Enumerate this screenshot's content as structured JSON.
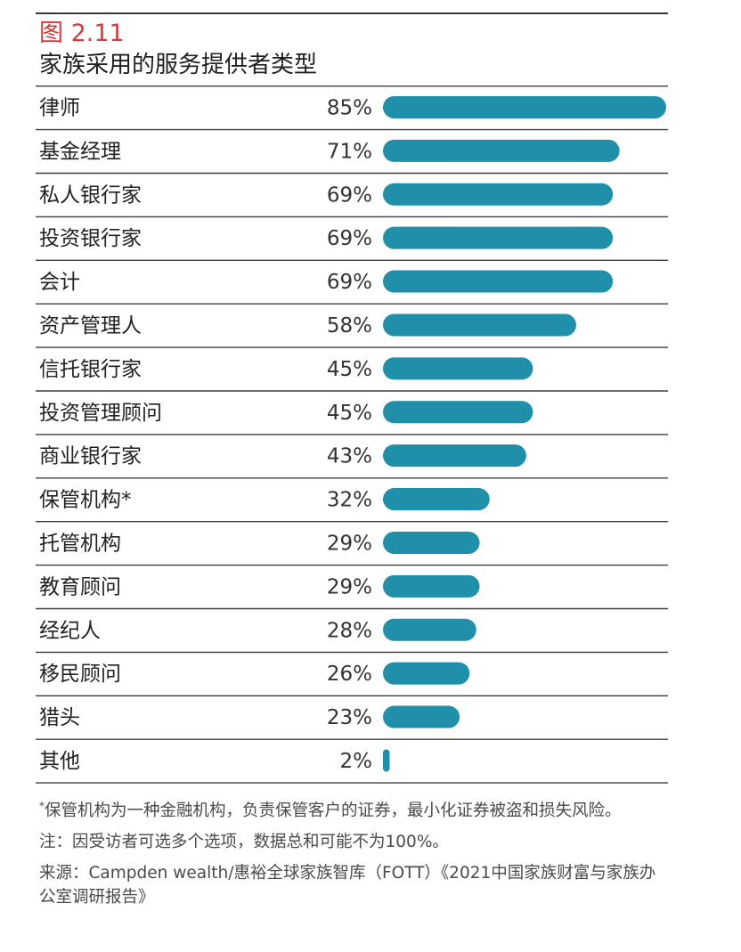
{
  "figure": {
    "number": "图 2.11",
    "title": "家族采用的服务提供者类型"
  },
  "chart_data": {
    "type": "bar",
    "orientation": "horizontal",
    "title": "家族采用的服务提供者类型",
    "xlim": [
      0,
      85
    ],
    "grid": false,
    "categories": [
      "律师",
      "基金经理",
      "私人银行家",
      "投资银行家",
      "会计",
      "资产管理人",
      "信托银行家",
      "投资管理顾问",
      "商业银行家",
      "保管机构*",
      "托管机构",
      "教育顾问",
      "经纪人",
      "移民顾问",
      "猎头",
      "其他"
    ],
    "values": [
      85,
      71,
      69,
      69,
      69,
      58,
      45,
      45,
      43,
      32,
      29,
      29,
      28,
      26,
      23,
      2
    ],
    "value_labels": [
      "85%",
      "71%",
      "69%",
      "69%",
      "69%",
      "58%",
      "45%",
      "45%",
      "43%",
      "32%",
      "29%",
      "29%",
      "28%",
      "26%",
      "23%",
      "2%"
    ],
    "bar_color": "#1f8faa"
  },
  "notes": {
    "asterisk_mark": "*",
    "asterisk_text": "保管机构为一种金融机构，负责保管客户的证券，最小化证券被盗和损失风险。",
    "note": "注：因受访者可选多个选项，数据总和可能不为100%。",
    "source": "来源：Campden wealth/惠裕全球家族智库（FOTT）《2021中国家族财富与家族办公室调研报告》"
  },
  "colors": {
    "accent": "#d83a3a",
    "bar": "#1f8faa",
    "rule": "#3f3f3f"
  }
}
